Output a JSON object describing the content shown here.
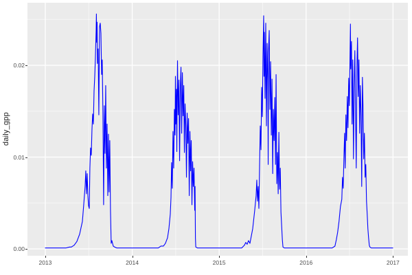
{
  "chart_data": {
    "type": "line",
    "title": "",
    "xlabel": "",
    "ylabel": "daily_gpp",
    "legend": "none",
    "grid": true,
    "panel_bg": "#EBEBEB",
    "grid_major_color": "#FFFFFF",
    "grid_minor_color": "rgba(255,255,255,0.55)",
    "line_color": "#0000FF",
    "tick_label_color": "#4D4D4D",
    "axis_title_color": "#1A1A1A",
    "x_tick_labels": [
      "2013",
      "2014",
      "2015",
      "2016",
      "2017"
    ],
    "x_tick_values": [
      2013,
      2014,
      2015,
      2016,
      2017
    ],
    "x_minor_ticks": [
      2013.5,
      2014.5,
      2015.5,
      2016.5
    ],
    "y_tick_labels": [
      "0.00",
      "0.01",
      "0.02"
    ],
    "y_tick_values": [
      0,
      0.01,
      0.02
    ],
    "y_minor_ticks": [
      0.005,
      0.015,
      0.025
    ],
    "x_range": [
      2012.795,
      2017.171
    ],
    "y_range": [
      -0.00075,
      0.02682
    ],
    "series": [
      {
        "name": "daily_gpp",
        "points": [
          [
            2013.0,
            0.0001
          ],
          [
            2013.24,
            0.0001
          ],
          [
            2013.28,
            0.0002
          ],
          [
            2013.3,
            0.0002
          ],
          [
            2013.332,
            0.0004
          ],
          [
            2013.363,
            0.0008
          ],
          [
            2013.395,
            0.0016
          ],
          [
            2013.427,
            0.003
          ],
          [
            2013.442,
            0.0048
          ],
          [
            2013.458,
            0.0068
          ],
          [
            2013.466,
            0.0085
          ],
          [
            2013.474,
            0.006
          ],
          [
            2013.482,
            0.0082
          ],
          [
            2013.49,
            0.0058
          ],
          [
            2013.498,
            0.0047
          ],
          [
            2013.506,
            0.0044
          ],
          [
            2013.513,
            0.0088
          ],
          [
            2013.521,
            0.011
          ],
          [
            2013.529,
            0.0102
          ],
          [
            2013.537,
            0.013
          ],
          [
            2013.545,
            0.0147
          ],
          [
            2013.553,
            0.0136
          ],
          [
            2013.561,
            0.0172
          ],
          [
            2013.569,
            0.0188
          ],
          [
            2013.577,
            0.021
          ],
          [
            2013.585,
            0.0238
          ],
          [
            2013.588,
            0.0256
          ],
          [
            2013.592,
            0.0225
          ],
          [
            2013.596,
            0.0247
          ],
          [
            2013.6,
            0.0202
          ],
          [
            2013.608,
            0.0218
          ],
          [
            2013.616,
            0.0146
          ],
          [
            2013.624,
            0.0242
          ],
          [
            2013.632,
            0.0246
          ],
          [
            2013.64,
            0.0235
          ],
          [
            2013.648,
            0.019
          ],
          [
            2013.655,
            0.0206
          ],
          [
            2013.663,
            0.0148
          ],
          [
            2013.671,
            0.0048
          ],
          [
            2013.679,
            0.0156
          ],
          [
            2013.687,
            0.0104
          ],
          [
            2013.695,
            0.0178
          ],
          [
            2013.703,
            0.0088
          ],
          [
            2013.711,
            0.0136
          ],
          [
            2013.719,
            0.0058
          ],
          [
            2013.727,
            0.0125
          ],
          [
            2013.734,
            0.0062
          ],
          [
            2013.742,
            0.0118
          ],
          [
            2013.75,
            0.0042
          ],
          [
            2013.758,
            0.0006
          ],
          [
            2013.766,
            0.0009
          ],
          [
            2013.782,
            0.0003
          ],
          [
            2013.798,
            0.0002
          ],
          [
            2013.821,
            0.0001
          ],
          [
            2014.0,
            0.0001
          ],
          [
            2014.3,
            0.0001
          ],
          [
            2014.33,
            0.0003
          ],
          [
            2014.359,
            0.0003
          ],
          [
            2014.382,
            0.0006
          ],
          [
            2014.406,
            0.0012
          ],
          [
            2014.422,
            0.0022
          ],
          [
            2014.438,
            0.0038
          ],
          [
            2014.446,
            0.0056
          ],
          [
            2014.453,
            0.0094
          ],
          [
            2014.461,
            0.0066
          ],
          [
            2014.469,
            0.0128
          ],
          [
            2014.477,
            0.0088
          ],
          [
            2014.485,
            0.0152
          ],
          [
            2014.493,
            0.0124
          ],
          [
            2014.497,
            0.0188
          ],
          [
            2014.501,
            0.0136
          ],
          [
            2014.509,
            0.0174
          ],
          [
            2014.513,
            0.0106
          ],
          [
            2014.517,
            0.0164
          ],
          [
            2014.521,
            0.0205
          ],
          [
            2014.529,
            0.0146
          ],
          [
            2014.537,
            0.0184
          ],
          [
            2014.545,
            0.0096
          ],
          [
            2014.553,
            0.0175
          ],
          [
            2014.561,
            0.0198
          ],
          [
            2014.569,
            0.0126
          ],
          [
            2014.577,
            0.0192
          ],
          [
            2014.585,
            0.0145
          ],
          [
            2014.593,
            0.0178
          ],
          [
            2014.6,
            0.0105
          ],
          [
            2014.608,
            0.0158
          ],
          [
            2014.616,
            0.0135
          ],
          [
            2014.624,
            0.0078
          ],
          [
            2014.632,
            0.0148
          ],
          [
            2014.64,
            0.0115
          ],
          [
            2014.648,
            0.0142
          ],
          [
            2014.656,
            0.0058
          ],
          [
            2014.664,
            0.0128
          ],
          [
            2014.672,
            0.0085
          ],
          [
            2014.679,
            0.0118
          ],
          [
            2014.687,
            0.0048
          ],
          [
            2014.695,
            0.0095
          ],
          [
            2014.703,
            0.0068
          ],
          [
            2014.711,
            0.0088
          ],
          [
            2014.719,
            0.0042
          ],
          [
            2014.723,
            0.0068
          ],
          [
            2014.727,
            0.0012
          ],
          [
            2014.731,
            0.0002
          ],
          [
            2014.75,
            0.0001
          ],
          [
            2015.0,
            0.0001
          ],
          [
            2015.26,
            0.0001
          ],
          [
            2015.291,
            0.0004
          ],
          [
            2015.306,
            0.0007
          ],
          [
            2015.322,
            0.0005
          ],
          [
            2015.338,
            0.0009
          ],
          [
            2015.354,
            0.0006
          ],
          [
            2015.362,
            0.001
          ],
          [
            2015.386,
            0.0022
          ],
          [
            2015.409,
            0.0042
          ],
          [
            2015.425,
            0.0058
          ],
          [
            2015.433,
            0.0075
          ],
          [
            2015.441,
            0.0052
          ],
          [
            2015.449,
            0.0068
          ],
          [
            2015.457,
            0.0044
          ],
          [
            2015.465,
            0.009
          ],
          [
            2015.473,
            0.0134
          ],
          [
            2015.481,
            0.0108
          ],
          [
            2015.489,
            0.0176
          ],
          [
            2015.497,
            0.0144
          ],
          [
            2015.504,
            0.021
          ],
          [
            2015.512,
            0.0254
          ],
          [
            2015.516,
            0.0188
          ],
          [
            2015.52,
            0.0236
          ],
          [
            2015.528,
            0.0164
          ],
          [
            2015.536,
            0.0246
          ],
          [
            2015.544,
            0.0134
          ],
          [
            2015.552,
            0.0224
          ],
          [
            2015.56,
            0.0184
          ],
          [
            2015.564,
            0.0092
          ],
          [
            2015.568,
            0.0215
          ],
          [
            2015.576,
            0.0238
          ],
          [
            2015.584,
            0.0152
          ],
          [
            2015.592,
            0.0204
          ],
          [
            2015.6,
            0.0124
          ],
          [
            2015.608,
            0.0185
          ],
          [
            2015.616,
            0.0082
          ],
          [
            2015.624,
            0.0152
          ],
          [
            2015.632,
            0.0118
          ],
          [
            2015.64,
            0.0165
          ],
          [
            2015.648,
            0.0092
          ],
          [
            2015.655,
            0.019
          ],
          [
            2015.663,
            0.0071
          ],
          [
            2015.671,
            0.0105
          ],
          [
            2015.679,
            0.006
          ],
          [
            2015.687,
            0.0127
          ],
          [
            2015.695,
            0.0065
          ],
          [
            2015.703,
            0.0088
          ],
          [
            2015.711,
            0.004
          ],
          [
            2015.719,
            0.0025
          ],
          [
            2015.727,
            0.001
          ],
          [
            2015.734,
            0.0002
          ],
          [
            2015.75,
            0.0001
          ],
          [
            2016.0,
            0.0001
          ],
          [
            2016.3,
            0.0001
          ],
          [
            2016.332,
            0.0003
          ],
          [
            2016.348,
            0.001
          ],
          [
            2016.363,
            0.0018
          ],
          [
            2016.379,
            0.003
          ],
          [
            2016.395,
            0.0046
          ],
          [
            2016.411,
            0.0054
          ],
          [
            2016.419,
            0.0078
          ],
          [
            2016.427,
            0.0066
          ],
          [
            2016.435,
            0.0098
          ],
          [
            2016.443,
            0.0126
          ],
          [
            2016.45,
            0.0088
          ],
          [
            2016.458,
            0.0146
          ],
          [
            2016.466,
            0.0118
          ],
          [
            2016.474,
            0.0166
          ],
          [
            2016.482,
            0.0132
          ],
          [
            2016.49,
            0.0186
          ],
          [
            2016.498,
            0.0156
          ],
          [
            2016.506,
            0.0216
          ],
          [
            2016.51,
            0.0245
          ],
          [
            2016.514,
            0.0196
          ],
          [
            2016.522,
            0.0226
          ],
          [
            2016.529,
            0.0136
          ],
          [
            2016.537,
            0.0206
          ],
          [
            2016.545,
            0.0098
          ],
          [
            2016.553,
            0.0176
          ],
          [
            2016.561,
            0.0216
          ],
          [
            2016.569,
            0.0146
          ],
          [
            2016.577,
            0.0088
          ],
          [
            2016.585,
            0.0198
          ],
          [
            2016.592,
            0.023
          ],
          [
            2016.6,
            0.0166
          ],
          [
            2016.608,
            0.0206
          ],
          [
            2016.616,
            0.0126
          ],
          [
            2016.624,
            0.0178
          ],
          [
            2016.632,
            0.0146
          ],
          [
            2016.64,
            0.0068
          ],
          [
            2016.648,
            0.0187
          ],
          [
            2016.655,
            0.0156
          ],
          [
            2016.663,
            0.0098
          ],
          [
            2016.671,
            0.0126
          ],
          [
            2016.679,
            0.0078
          ],
          [
            2016.687,
            0.0092
          ],
          [
            2016.695,
            0.0052
          ],
          [
            2016.703,
            0.0038
          ],
          [
            2016.711,
            0.0022
          ],
          [
            2016.719,
            0.0012
          ],
          [
            2016.727,
            0.0004
          ],
          [
            2016.734,
            0.0002
          ],
          [
            2016.75,
            0.0001
          ],
          [
            2016.998,
            0.0001
          ]
        ]
      }
    ]
  }
}
